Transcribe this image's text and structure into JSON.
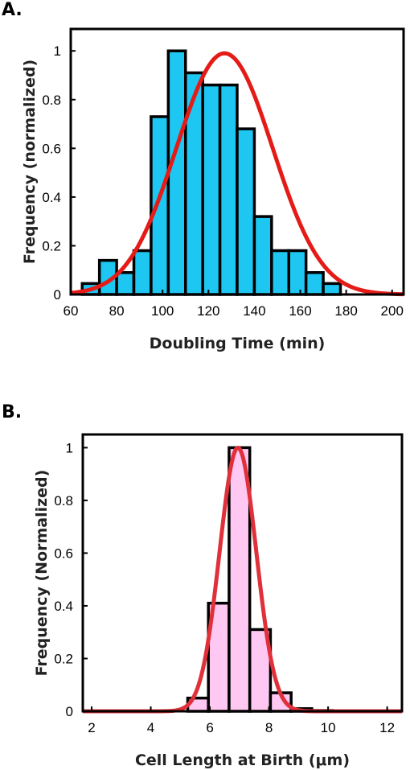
{
  "chart_data": [
    {
      "type": "bar",
      "panel_label": "A.",
      "xlabel": "Doubling Time (min)",
      "ylabel": "Frequency (normalized)",
      "xlim": [
        60,
        205
      ],
      "ylim": [
        0,
        1.09
      ],
      "xticks": [
        60,
        80,
        100,
        120,
        140,
        160,
        180,
        200
      ],
      "yticks": [
        0,
        0.2,
        0.4,
        0.6,
        0.8,
        1
      ],
      "ytick_labels": [
        "0",
        "0.2",
        "0.4",
        "0.6",
        "0.8",
        "1"
      ],
      "bin_edges": [
        65,
        72.5,
        80,
        87.5,
        95,
        102.5,
        110,
        117.5,
        125,
        132.5,
        140,
        147.5,
        155,
        162.5,
        170,
        177.5,
        185,
        192.5,
        200
      ],
      "values": [
        0.045,
        0.14,
        0.09,
        0.18,
        0.73,
        1.0,
        0.91,
        0.86,
        0.86,
        0.68,
        0.32,
        0.18,
        0.18,
        0.09,
        0.045,
        0.0,
        0.0,
        0.0
      ],
      "bar_color": "#1ec6f2",
      "fit": {
        "type": "gaussian",
        "mean": 127,
        "sigma": 21,
        "peak": 0.99,
        "color": "#e41b17"
      },
      "grid": false
    },
    {
      "type": "bar",
      "panel_label": "B.",
      "xlabel": "Cell Length at Birth (μm)",
      "ylabel": "Frequency (Normalized)",
      "xlim": [
        1.7,
        12.5
      ],
      "ylim": [
        0,
        1.05
      ],
      "xticks": [
        2,
        4,
        6,
        8,
        10,
        12
      ],
      "yticks": [
        0,
        0.2,
        0.4,
        0.6,
        0.8,
        1
      ],
      "ytick_labels": [
        "0",
        "0.2",
        "0.4",
        "0.6",
        "0.8",
        "1"
      ],
      "bin_edges": [
        5.25,
        5.95,
        6.65,
        7.35,
        8.05,
        8.75,
        9.45,
        10.15,
        10.85,
        11.55,
        12.25
      ],
      "values": [
        0.05,
        0.41,
        1.0,
        0.31,
        0.07,
        0.01,
        0.003,
        0.002,
        0.002,
        0.0
      ],
      "bar_color": "#ffc8f3",
      "fit": {
        "type": "gaussian",
        "mean": 6.95,
        "sigma": 0.62,
        "peak": 1.0,
        "color": "#e0303a"
      },
      "grid": false
    }
  ]
}
